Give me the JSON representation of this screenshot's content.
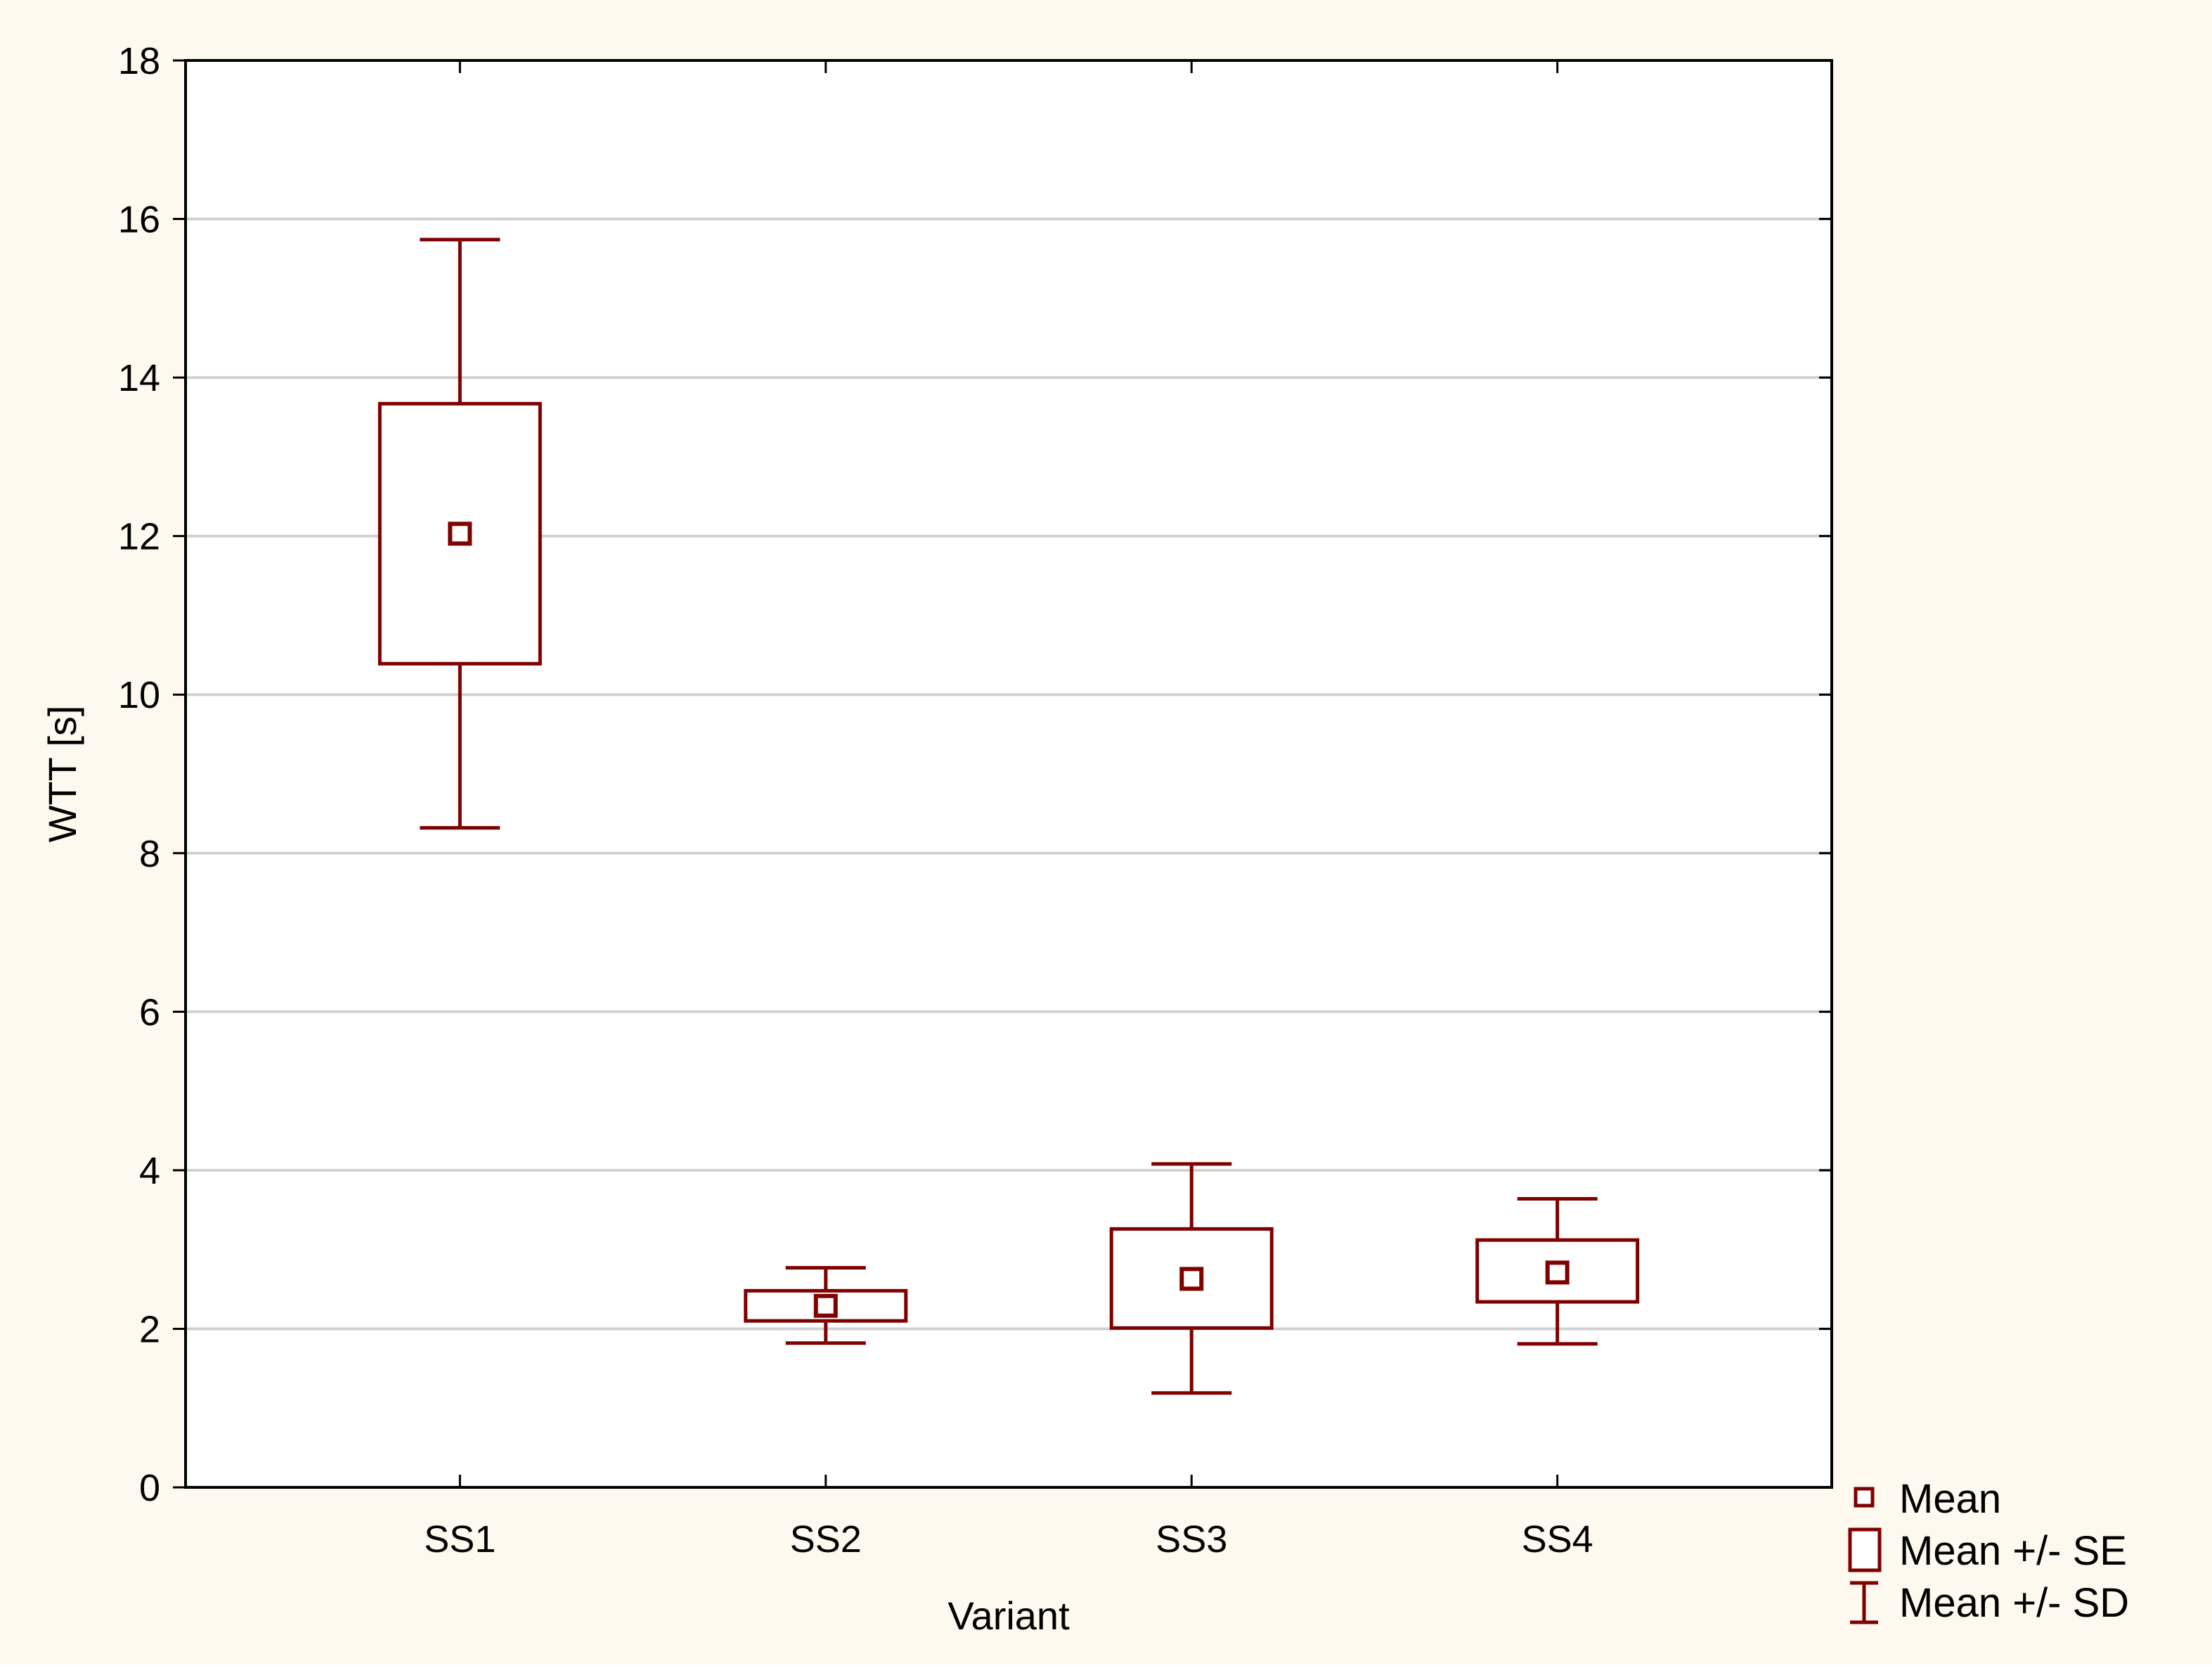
{
  "chart_data": {
    "type": "box",
    "title": "",
    "xlabel": "Variant",
    "ylabel": "WTT   [s]",
    "ylim": [
      0,
      18
    ],
    "yticks": [
      0,
      2,
      4,
      6,
      8,
      10,
      12,
      14,
      16,
      18
    ],
    "grid": true,
    "legend_position": "bottom-right, outside plot",
    "categories": [
      "SS1",
      "SS2",
      "SS3",
      "SS4"
    ],
    "series": [
      {
        "name": "Mean",
        "values": [
          12.03,
          2.29,
          2.63,
          2.71
        ]
      },
      {
        "name": "Mean +/- SE",
        "low": [
          10.39,
          2.1,
          2.01,
          2.34
        ],
        "high": [
          13.67,
          2.48,
          3.26,
          3.12
        ]
      },
      {
        "name": "Mean +/- SD",
        "low": [
          8.32,
          1.82,
          1.19,
          1.81
        ],
        "high": [
          15.74,
          2.77,
          4.08,
          3.64
        ]
      }
    ],
    "colors": {
      "series": "#7f0000",
      "background": "#fdf9ee",
      "plot_background": "#ffffff",
      "grid": "#d0d0d0",
      "axis": "#000000"
    }
  }
}
